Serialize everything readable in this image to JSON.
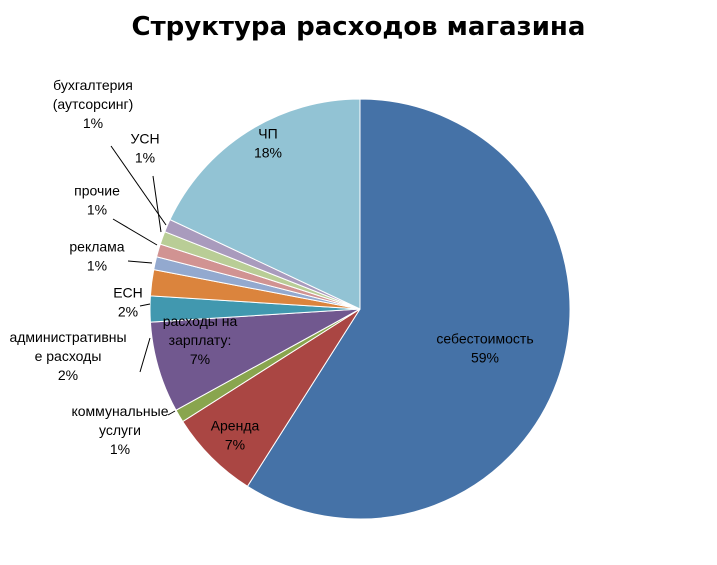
{
  "chart_data": {
    "type": "pie",
    "title": "Структура расходов магазина",
    "start_angle_deg": 0,
    "direction": "clockwise",
    "slices": [
      {
        "name": "себестоимость",
        "value": 59,
        "label": "59%",
        "color": "#4572A7"
      },
      {
        "name": "Аренда",
        "value": 7,
        "label": "7%",
        "color": "#AA4643"
      },
      {
        "name": "коммунальные услуги",
        "value": 1,
        "label": "1%",
        "color": "#89A54E"
      },
      {
        "name": "расходы на зарплату:",
        "value": 7,
        "label": "7%",
        "color": "#71588F"
      },
      {
        "name": "административные расходы",
        "value": 2,
        "label": "2%",
        "color": "#4198AF"
      },
      {
        "name": "ЕСН",
        "value": 2,
        "label": "2%",
        "color": "#DB843D"
      },
      {
        "name": "реклама",
        "value": 1,
        "label": "1%",
        "color": "#93A9CF"
      },
      {
        "name": "прочие",
        "value": 1,
        "label": "1%",
        "color": "#D19392"
      },
      {
        "name": "УСН",
        "value": 1,
        "label": "1%",
        "color": "#B9CD96"
      },
      {
        "name": "бухгалтерия (аутсорсинг)",
        "value": 1,
        "label": "1%",
        "color": "#A99BBD"
      },
      {
        "name": "ЧП",
        "value": 18,
        "label": "18%",
        "color": "#92C3D4"
      }
    ],
    "label_lines": {
      "себестоимость": [
        "себестоимость"
      ],
      "Аренда": [
        "Аренда"
      ],
      "коммунальные услуги": [
        "коммунальные",
        "услуги"
      ],
      "расходы на зарплату:": [
        "расходы на",
        "зарплату:"
      ],
      "административные расходы": [
        "административны",
        "е расходы"
      ],
      "ЕСН": [
        "ЕСН"
      ],
      "реклама": [
        "реклама"
      ],
      "прочие": [
        "прочие"
      ],
      "УСН": [
        "УСН"
      ],
      "бухгалтерия (аутсорсинг)": [
        "бухгалтерия",
        "(аутсорсинг)"
      ],
      "ЧП": [
        "ЧП"
      ]
    }
  }
}
